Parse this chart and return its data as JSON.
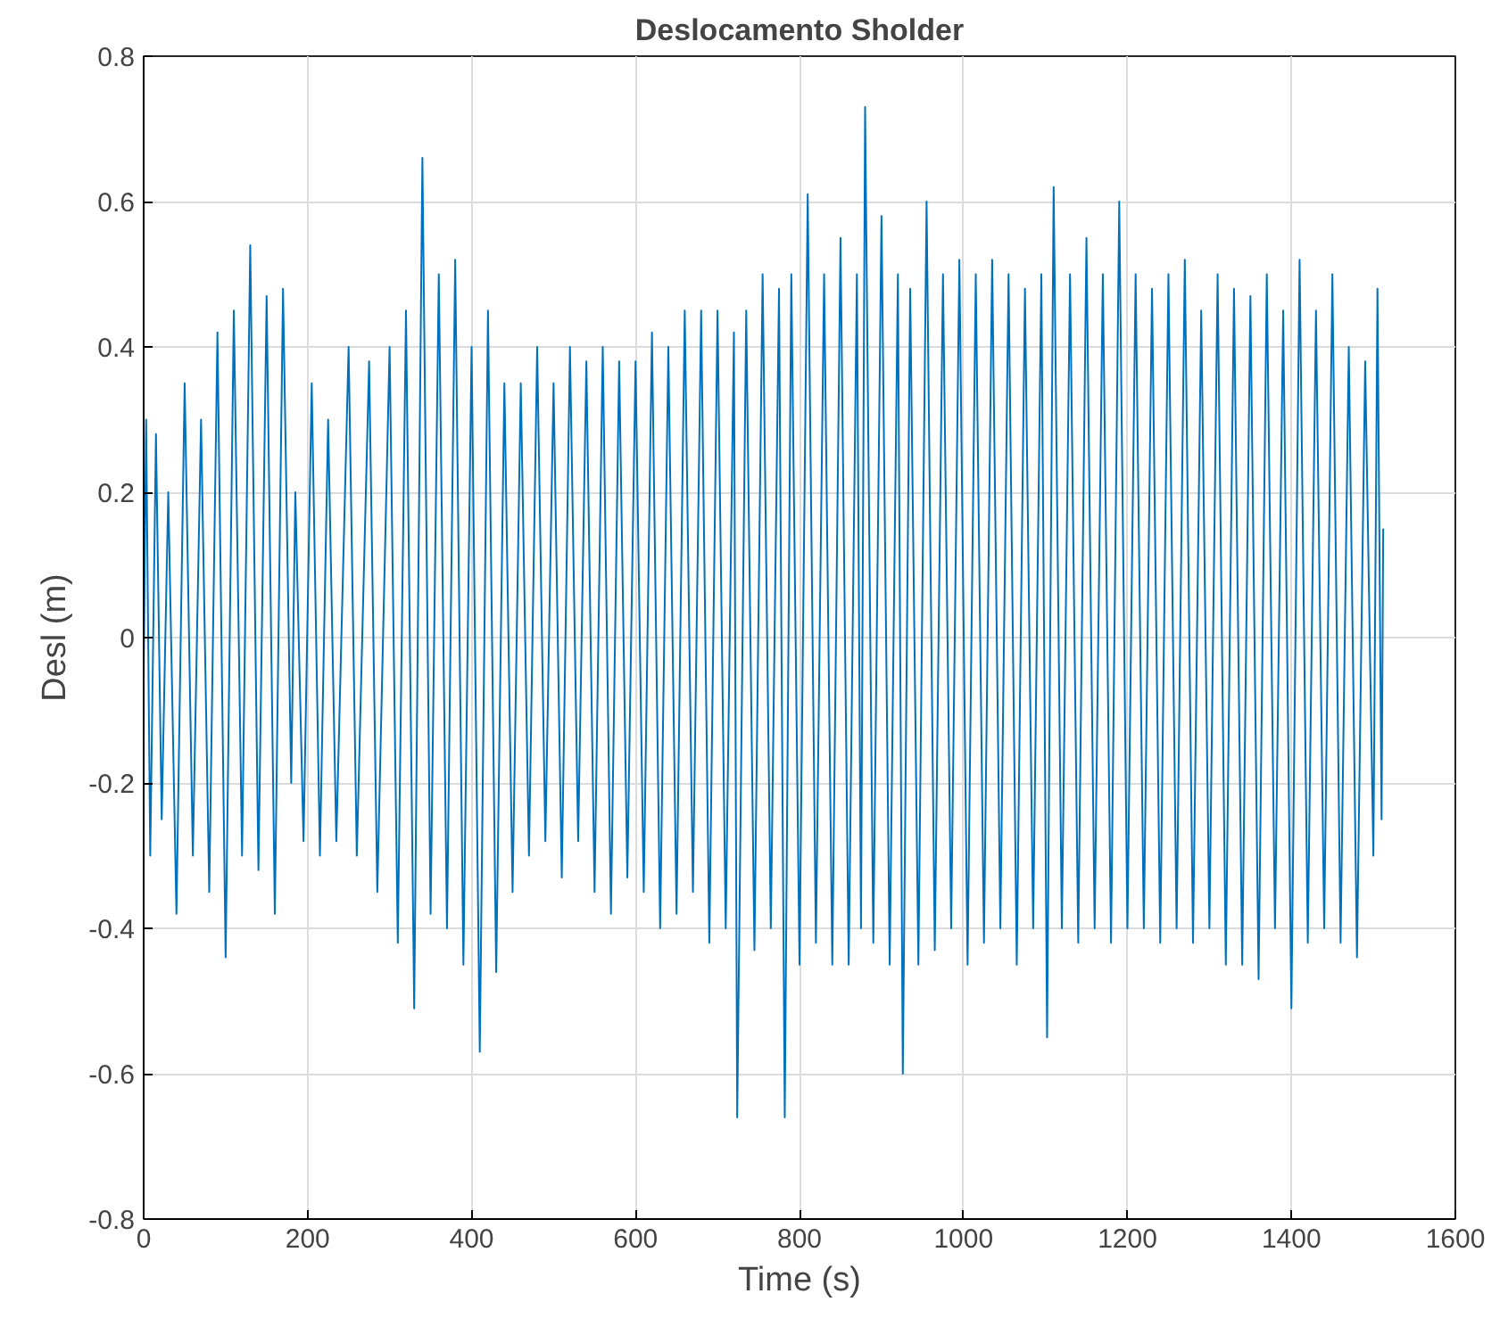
{
  "chart_data": {
    "type": "line",
    "title": "Deslocamento Sholder",
    "xlabel": "Time (s)",
    "ylabel": "Desl (m)",
    "xlim": [
      0,
      1600
    ],
    "ylim": [
      -0.8,
      0.8
    ],
    "xticks": [
      0,
      200,
      400,
      600,
      800,
      1000,
      1200,
      1400,
      1600
    ],
    "yticks": [
      -0.8,
      -0.6,
      -0.4,
      -0.2,
      0,
      0.2,
      0.4,
      0.6,
      0.8
    ],
    "grid": true,
    "line_style": "solid",
    "series": [
      {
        "color": "#0072bd",
        "x": [
          0,
          3,
          8,
          15,
          22,
          30,
          40,
          50,
          60,
          70,
          80,
          90,
          100,
          110,
          120,
          130,
          140,
          150,
          160,
          170,
          180,
          185,
          195,
          205,
          215,
          225,
          235,
          250,
          260,
          275,
          285,
          300,
          310,
          320,
          330,
          340,
          350,
          360,
          370,
          380,
          390,
          400,
          410,
          420,
          430,
          440,
          450,
          460,
          470,
          480,
          490,
          500,
          510,
          520,
          530,
          540,
          550,
          560,
          570,
          580,
          590,
          600,
          610,
          620,
          630,
          640,
          650,
          660,
          670,
          680,
          690,
          700,
          710,
          720,
          724,
          735,
          745,
          755,
          765,
          775,
          782,
          790,
          800,
          810,
          820,
          830,
          840,
          850,
          860,
          870,
          875,
          880,
          890,
          900,
          910,
          920,
          926,
          935,
          945,
          955,
          965,
          975,
          985,
          995,
          1005,
          1015,
          1025,
          1035,
          1045,
          1055,
          1065,
          1075,
          1085,
          1095,
          1102,
          1110,
          1120,
          1130,
          1140,
          1150,
          1160,
          1170,
          1180,
          1190,
          1200,
          1210,
          1220,
          1230,
          1240,
          1250,
          1260,
          1270,
          1280,
          1290,
          1300,
          1310,
          1320,
          1330,
          1340,
          1350,
          1360,
          1370,
          1380,
          1390,
          1400,
          1410,
          1420,
          1430,
          1440,
          1450,
          1460,
          1470,
          1480,
          1490,
          1500,
          1505,
          1510,
          1512
        ],
        "values": [
          -0.05,
          0.3,
          -0.3,
          0.28,
          -0.25,
          0.2,
          -0.38,
          0.35,
          -0.3,
          0.3,
          -0.35,
          0.42,
          -0.44,
          0.45,
          -0.3,
          0.54,
          -0.32,
          0.47,
          -0.38,
          0.48,
          -0.2,
          0.2,
          -0.28,
          0.35,
          -0.3,
          0.3,
          -0.28,
          0.4,
          -0.3,
          0.38,
          -0.35,
          0.4,
          -0.42,
          0.45,
          -0.51,
          0.66,
          -0.38,
          0.5,
          -0.4,
          0.52,
          -0.45,
          0.4,
          -0.57,
          0.45,
          -0.46,
          0.35,
          -0.35,
          0.35,
          -0.3,
          0.4,
          -0.28,
          0.35,
          -0.33,
          0.4,
          -0.28,
          0.38,
          -0.35,
          0.4,
          -0.38,
          0.38,
          -0.33,
          0.38,
          -0.35,
          0.42,
          -0.4,
          0.4,
          -0.38,
          0.45,
          -0.35,
          0.45,
          -0.42,
          0.45,
          -0.4,
          0.42,
          -0.66,
          0.45,
          -0.43,
          0.5,
          -0.4,
          0.48,
          -0.66,
          0.5,
          -0.45,
          0.61,
          -0.42,
          0.5,
          -0.45,
          0.55,
          -0.45,
          0.5,
          -0.4,
          0.73,
          -0.42,
          0.58,
          -0.45,
          0.5,
          -0.6,
          0.48,
          -0.45,
          0.6,
          -0.43,
          0.5,
          -0.4,
          0.52,
          -0.45,
          0.5,
          -0.42,
          0.52,
          -0.4,
          0.5,
          -0.45,
          0.48,
          -0.4,
          0.5,
          -0.55,
          0.62,
          -0.4,
          0.5,
          -0.42,
          0.55,
          -0.4,
          0.5,
          -0.42,
          0.6,
          -0.4,
          0.5,
          -0.4,
          0.48,
          -0.42,
          0.5,
          -0.4,
          0.52,
          -0.42,
          0.45,
          -0.4,
          0.5,
          -0.45,
          0.48,
          -0.45,
          0.47,
          -0.47,
          0.5,
          -0.4,
          0.45,
          -0.51,
          0.52,
          -0.42,
          0.45,
          -0.4,
          0.5,
          -0.42,
          0.4,
          -0.44,
          0.38,
          -0.3,
          0.48,
          -0.25,
          0.15
        ]
      }
    ]
  }
}
